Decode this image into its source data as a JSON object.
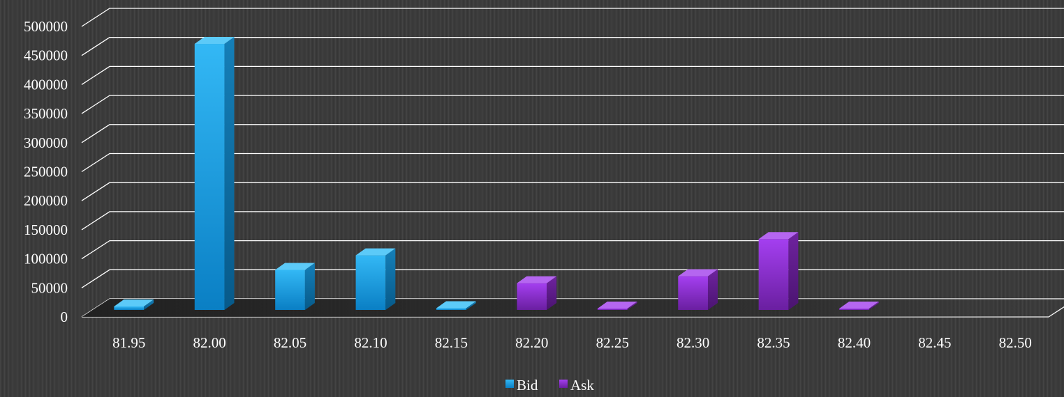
{
  "chart_data": {
    "type": "bar",
    "categories": [
      "81.95",
      "82.00",
      "82.05",
      "82.10",
      "82.15",
      "82.20",
      "82.25",
      "82.30",
      "82.35",
      "82.40",
      "82.45",
      "82.50"
    ],
    "series": [
      {
        "name": "Bid",
        "values": [
          6000,
          458000,
          69000,
          94000,
          3000,
          0,
          0,
          0,
          0,
          0,
          0,
          0
        ],
        "color": "#1aa3e8"
      },
      {
        "name": "Ask",
        "values": [
          0,
          0,
          0,
          0,
          0,
          46000,
          1000,
          58000,
          122000,
          1000,
          0,
          0
        ],
        "color": "#8a2fc4"
      }
    ],
    "yticks": [
      "0",
      "50000",
      "100000",
      "150000",
      "200000",
      "250000",
      "300000",
      "350000",
      "400000",
      "450000",
      "500000"
    ],
    "ylim": [
      0,
      500000
    ],
    "title": "",
    "xlabel": "",
    "ylabel": "",
    "grid": true,
    "legend": "bottom-center",
    "style": "3d-column"
  }
}
